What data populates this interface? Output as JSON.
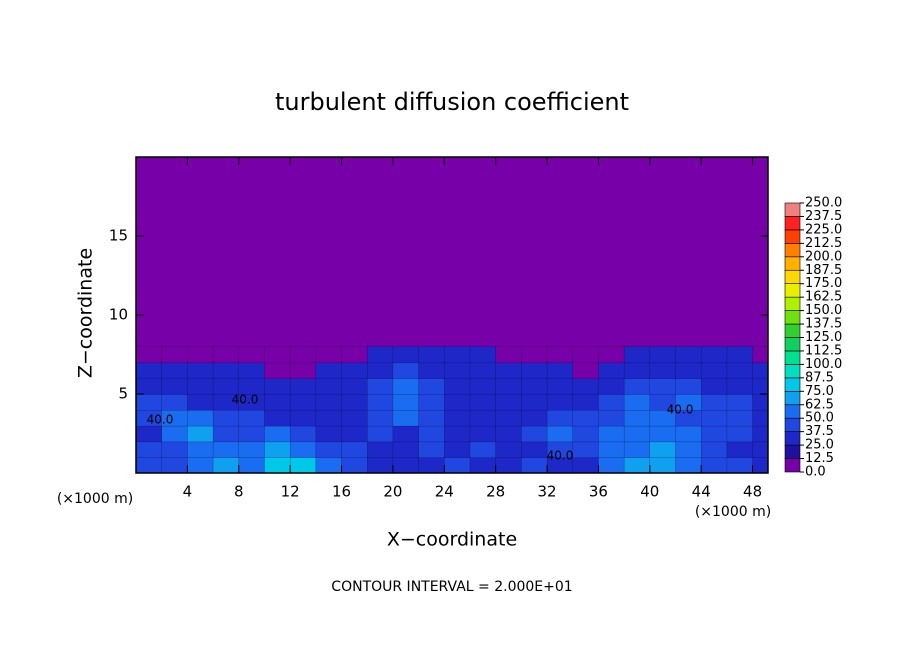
{
  "chart_data": {
    "type": "contour",
    "title": "turbulent diffusion coefficient",
    "x_label": "X−coordinate",
    "y_label": "Z−coordinate",
    "x_unit_left": "(×1000 m)",
    "x_unit_right": "(×1000 m)",
    "footer": "CONTOUR INTERVAL = 2.000E+01",
    "xlim": [
      0,
      49.2
    ],
    "ylim": [
      0,
      20
    ],
    "xticks": [
      4,
      8,
      12,
      16,
      20,
      24,
      28,
      32,
      36,
      40,
      44,
      48
    ],
    "yticks": [
      5,
      10,
      15
    ],
    "x": [
      1,
      3,
      5,
      7,
      9,
      11,
      13,
      15,
      17,
      19,
      21,
      23,
      25,
      27,
      29,
      31,
      33,
      35,
      37,
      39,
      41,
      43,
      45,
      47,
      49
    ],
    "y": [
      0.5,
      1.5,
      2.5,
      3.5,
      4.5,
      5.5,
      6.5,
      7.5
    ],
    "z": [
      [
        45,
        40,
        55,
        70,
        60,
        75,
        80,
        50,
        40,
        35,
        35,
        35,
        40,
        35,
        35,
        40,
        35,
        30,
        55,
        65,
        70,
        60,
        45,
        40,
        35
      ],
      [
        40,
        45,
        60,
        55,
        50,
        70,
        60,
        40,
        40,
        35,
        35,
        40,
        35,
        40,
        30,
        35,
        40,
        45,
        60,
        60,
        65,
        55,
        40,
        35,
        35
      ],
      [
        35,
        50,
        65,
        45,
        45,
        60,
        40,
        35,
        35,
        40,
        35,
        45,
        35,
        35,
        35,
        40,
        50,
        45,
        50,
        55,
        60,
        50,
        40,
        40,
        30
      ],
      [
        40,
        55,
        60,
        40,
        40,
        35,
        35,
        30,
        35,
        40,
        55,
        45,
        35,
        35,
        35,
        35,
        40,
        40,
        40,
        50,
        55,
        45,
        45,
        40,
        35
      ],
      [
        40,
        45,
        35,
        35,
        30,
        35,
        30,
        30,
        30,
        45,
        60,
        40,
        35,
        30,
        30,
        35,
        35,
        35,
        40,
        50,
        45,
        50,
        45,
        40,
        35
      ],
      [
        35,
        30,
        30,
        30,
        30,
        25,
        30,
        30,
        25,
        40,
        55,
        40,
        35,
        30,
        25,
        30,
        30,
        30,
        35,
        45,
        40,
        40,
        35,
        35,
        30
      ],
      [
        30,
        30,
        30,
        25,
        25,
        12,
        0,
        25,
        25,
        30,
        40,
        35,
        30,
        30,
        25,
        25,
        25,
        12,
        30,
        35,
        35,
        35,
        30,
        30,
        30
      ],
      [
        0,
        0,
        0,
        0,
        0,
        0,
        0,
        0,
        0,
        25,
        30,
        30,
        25,
        25,
        0,
        0,
        0,
        0,
        0,
        30,
        30,
        30,
        25,
        25,
        0
      ]
    ],
    "contour_labels": [
      "40.0",
      "40.0",
      "40.0",
      "40.0"
    ],
    "colorbar": {
      "levels": [
        {
          "value": 0,
          "label": "0.0"
        },
        {
          "value": 12.5,
          "label": "12.5"
        },
        {
          "value": 25,
          "label": "25.0"
        },
        {
          "value": 37.5,
          "label": "37.5"
        },
        {
          "value": 50,
          "label": "50.0"
        },
        {
          "value": 62.5,
          "label": "62.5"
        },
        {
          "value": 75,
          "label": "75.0"
        },
        {
          "value": 87.5,
          "label": "87.5"
        },
        {
          "value": 100,
          "label": "100.0"
        },
        {
          "value": 112.5,
          "label": "112.5"
        },
        {
          "value": 125,
          "label": "125.0"
        },
        {
          "value": 137.5,
          "label": "137.5"
        },
        {
          "value": 150,
          "label": "150.0"
        },
        {
          "value": 162.5,
          "label": "162.5"
        },
        {
          "value": 175,
          "label": "175.0"
        },
        {
          "value": 187.5,
          "label": "187.5"
        },
        {
          "value": 200,
          "label": "200.0"
        },
        {
          "value": 212.5,
          "label": "212.5"
        },
        {
          "value": 225,
          "label": "225.0"
        },
        {
          "value": 237.5,
          "label": "237.5"
        },
        {
          "value": 250,
          "label": "250.0"
        }
      ],
      "colors": [
        "#7800a8",
        "#2010a0",
        "#1e28c8",
        "#2048e0",
        "#1a6cf0",
        "#10a0f0",
        "#00c8e8",
        "#00e0c0",
        "#00e090",
        "#10d060",
        "#30d030",
        "#70e010",
        "#b0f000",
        "#e8f000",
        "#ffd800",
        "#ffb000",
        "#ff8000",
        "#ff4000",
        "#ff2020",
        "#f08080"
      ]
    }
  }
}
